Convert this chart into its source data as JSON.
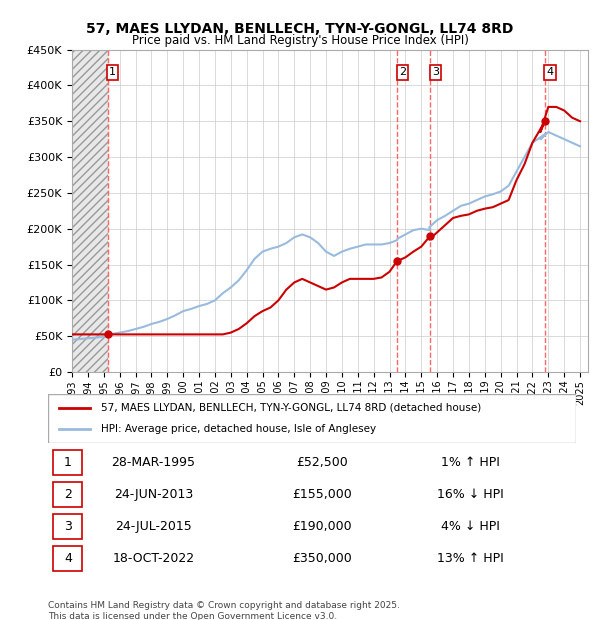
{
  "title": "57, MAES LLYDAN, BENLLECH, TYN-Y-GONGL, LL74 8RD",
  "subtitle": "Price paid vs. HM Land Registry's House Price Index (HPI)",
  "ylabel": "",
  "ylim": [
    0,
    450000
  ],
  "yticks": [
    0,
    50000,
    100000,
    150000,
    200000,
    250000,
    300000,
    350000,
    400000,
    450000
  ],
  "ytick_labels": [
    "£0",
    "£50K",
    "£100K",
    "£150K",
    "£200K",
    "£250K",
    "£300K",
    "£350K",
    "£400K",
    "£450K"
  ],
  "xlim_start": 1993.0,
  "xlim_end": 2025.5,
  "xtick_years": [
    1993,
    1994,
    1995,
    1996,
    1997,
    1998,
    1999,
    2000,
    2001,
    2002,
    2003,
    2004,
    2005,
    2006,
    2007,
    2008,
    2009,
    2010,
    2011,
    2012,
    2013,
    2014,
    2015,
    2016,
    2017,
    2018,
    2019,
    2020,
    2021,
    2022,
    2023,
    2024,
    2025
  ],
  "sale_color": "#cc0000",
  "hpi_color": "#6699cc",
  "hpi_line_color": "#99bbdd",
  "vline_color": "#ff6666",
  "transaction_line_color": "#cc0000",
  "hatched_bg_color": "#e8e8e8",
  "grid_color": "#cccccc",
  "sale_marker_color": "#cc0000",
  "legend_box_color": "#cc0000",
  "sales": [
    {
      "num": 1,
      "date_dec": 1995.24,
      "price": 52500
    },
    {
      "num": 2,
      "date_dec": 2013.48,
      "price": 155000
    },
    {
      "num": 3,
      "date_dec": 2015.56,
      "price": 190000
    },
    {
      "num": 4,
      "date_dec": 2022.79,
      "price": 350000
    }
  ],
  "table_rows": [
    {
      "num": 1,
      "date": "28-MAR-1995",
      "price": "£52,500",
      "hpi": "1% ↑ HPI"
    },
    {
      "num": 2,
      "date": "24-JUN-2013",
      "price": "£155,000",
      "hpi": "16% ↓ HPI"
    },
    {
      "num": 3,
      "date": "24-JUL-2015",
      "price": "£190,000",
      "hpi": "4% ↓ HPI"
    },
    {
      "num": 4,
      "date": "18-OCT-2022",
      "price": "£350,000",
      "hpi": "13% ↑ HPI"
    }
  ],
  "legend_entries": [
    "57, MAES LLYDAN, BENLLECH, TYN-Y-GONGL, LL74 8RD (detached house)",
    "HPI: Average price, detached house, Isle of Anglesey"
  ],
  "footer": "Contains HM Land Registry data © Crown copyright and database right 2025.\nThis data is licensed under the Open Government Licence v3.0.",
  "sale_price_line_data": {
    "x": [
      1993.0,
      1993.5,
      1994.0,
      1994.5,
      1995.0,
      1995.24,
      1995.5,
      1996.0,
      1996.5,
      1997.0,
      1997.5,
      1998.0,
      1998.5,
      1999.0,
      1999.5,
      2000.0,
      2000.5,
      2001.0,
      2001.5,
      2002.0,
      2002.5,
      2003.0,
      2003.5,
      2004.0,
      2004.5,
      2005.0,
      2005.5,
      2006.0,
      2006.5,
      2007.0,
      2007.5,
      2008.0,
      2008.5,
      2009.0,
      2009.5,
      2010.0,
      2010.5,
      2011.0,
      2011.5,
      2012.0,
      2012.5,
      2013.0,
      2013.48,
      2013.5,
      2014.0,
      2014.5,
      2015.0,
      2015.56,
      2015.5,
      2016.0,
      2016.5,
      2017.0,
      2017.5,
      2018.0,
      2018.5,
      2019.0,
      2019.5,
      2020.0,
      2020.5,
      2021.0,
      2021.5,
      2022.0,
      2022.79,
      2022.5,
      2023.0,
      2023.5,
      2024.0,
      2024.5,
      2025.0
    ],
    "y_sale": [
      52500,
      52500,
      52500,
      52500,
      52500,
      52500,
      52500,
      52500,
      52500,
      52500,
      52500,
      52500,
      52500,
      52500,
      52500,
      52500,
      52500,
      52500,
      52500,
      52500,
      52500,
      55000,
      60000,
      68000,
      78000,
      85000,
      90000,
      100000,
      115000,
      125000,
      130000,
      125000,
      120000,
      115000,
      118000,
      125000,
      130000,
      130000,
      130000,
      130000,
      132000,
      140000,
      155000,
      155000,
      160000,
      168000,
      175000,
      190000,
      185000,
      195000,
      205000,
      215000,
      218000,
      220000,
      225000,
      228000,
      230000,
      235000,
      240000,
      268000,
      290000,
      320000,
      350000,
      335000,
      370000,
      370000,
      365000,
      355000,
      350000
    ],
    "y_hpi": [
      45000,
      46000,
      47000,
      48000,
      49500,
      51500,
      53000,
      55000,
      57000,
      60000,
      63000,
      67000,
      70000,
      74000,
      79000,
      85000,
      88000,
      92000,
      95000,
      100000,
      110000,
      118000,
      128000,
      142000,
      158000,
      168000,
      172000,
      175000,
      180000,
      188000,
      192000,
      188000,
      180000,
      168000,
      162000,
      168000,
      172000,
      175000,
      178000,
      178000,
      178000,
      180000,
      184000,
      186000,
      192000,
      198000,
      200000,
      198000,
      202000,
      212000,
      218000,
      225000,
      232000,
      235000,
      240000,
      245000,
      248000,
      252000,
      260000,
      280000,
      300000,
      320000,
      332000,
      325000,
      335000,
      330000,
      325000,
      320000,
      315000
    ]
  }
}
